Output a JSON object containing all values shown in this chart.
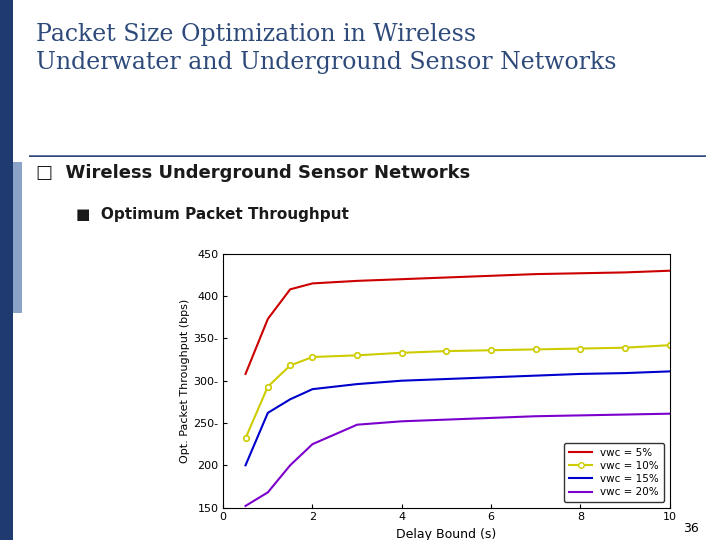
{
  "title_line1": "Packet Size Optimization in Wireless",
  "title_line2": "Underwater and Underground Sensor Networks",
  "subtitle": "Wireless Underground Sensor Networks",
  "sub_bullet": "Optimum Packet Throughput",
  "xlabel": "Delay Bound (s)",
  "ylabel": "Opt. Packet Throughput (bps)",
  "xlim": [
    0,
    10
  ],
  "ylim": [
    150,
    450
  ],
  "xticks": [
    0,
    2,
    4,
    6,
    8,
    10
  ],
  "yticks": [
    150,
    200,
    250,
    300,
    350,
    400,
    450
  ],
  "ytick_labels": [
    "150",
    "200",
    "250-",
    "300-",
    "350-",
    "400",
    "450"
  ],
  "title_color": "#2E4A7A",
  "subtitle_color": "#1a1a1a",
  "slide_number": "36",
  "left_bar_color": "#1F3A6E",
  "left_bar_light_color": "#8BA3C7",
  "hr_color": "#2E4A7A",
  "series": [
    {
      "label": "vwc = 5%",
      "color": "#CC0000",
      "marker": null,
      "x": [
        0.5,
        1.0,
        1.5,
        2.0,
        3.0,
        4.0,
        5.0,
        6.0,
        7.0,
        8.0,
        9.0,
        10.0
      ],
      "y": [
        308,
        373,
        408,
        415,
        418,
        420,
        422,
        424,
        426,
        427,
        428,
        430
      ]
    },
    {
      "label": "vwc = 10%",
      "color": "#CCCC00",
      "marker": "o",
      "x": [
        0.5,
        1.0,
        1.5,
        2.0,
        3.0,
        4.0,
        5.0,
        6.0,
        7.0,
        8.0,
        9.0,
        10.0
      ],
      "y": [
        232,
        293,
        318,
        328,
        330,
        333,
        335,
        336,
        337,
        338,
        339,
        342
      ]
    },
    {
      "label": "vwc = 15%",
      "color": "#0000CC",
      "marker": null,
      "x": [
        0.5,
        1.0,
        1.5,
        2.0,
        3.0,
        4.0,
        5.0,
        6.0,
        7.0,
        8.0,
        9.0,
        10.0
      ],
      "y": [
        200,
        262,
        278,
        290,
        296,
        300,
        302,
        304,
        306,
        308,
        309,
        311
      ]
    },
    {
      "label": "vwc = 20%",
      "color": "#7B00CC",
      "marker": null,
      "x": [
        0.5,
        1.0,
        1.5,
        2.0,
        3.0,
        4.0,
        5.0,
        6.0,
        7.0,
        8.0,
        9.0,
        10.0
      ],
      "y": [
        152,
        168,
        200,
        225,
        248,
        252,
        254,
        256,
        258,
        259,
        260,
        261
      ]
    }
  ]
}
